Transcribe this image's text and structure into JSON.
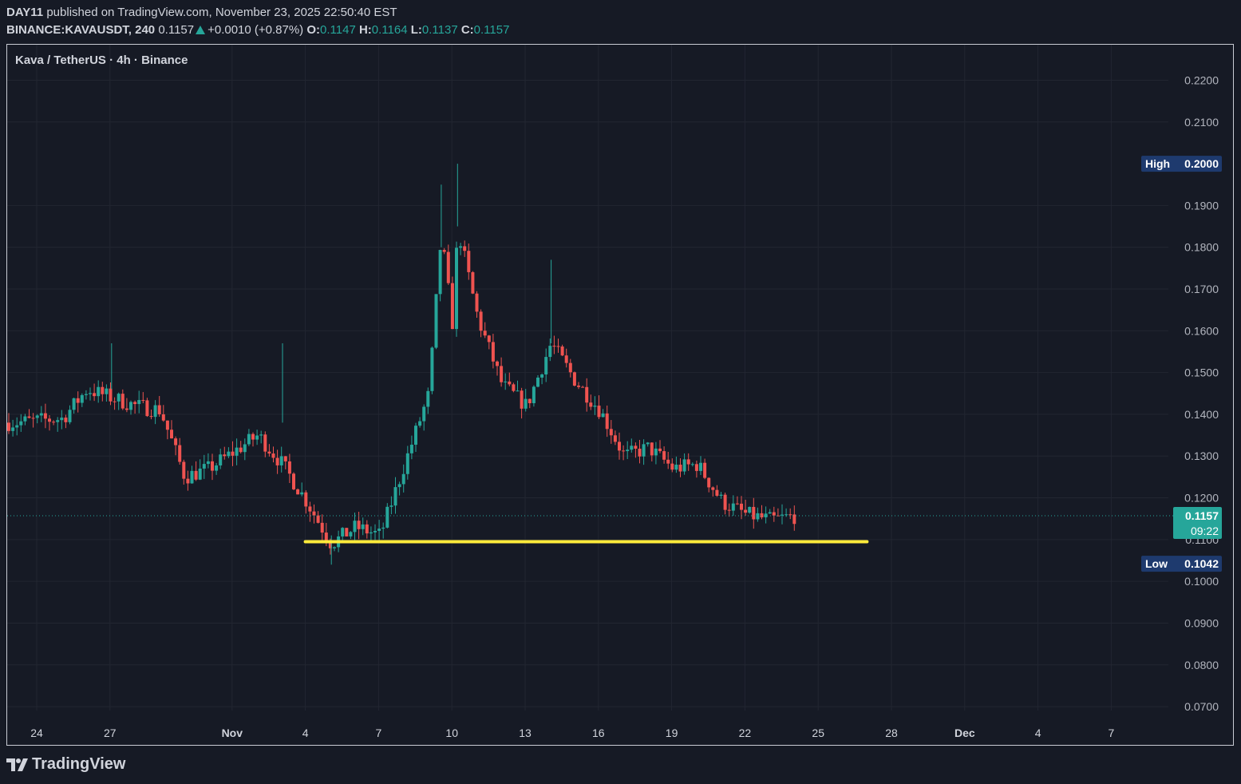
{
  "header": {
    "publisher": "DAY11",
    "published_text": "published on TradingView.com, November 23, 2025 22:50:40 EST",
    "symbol": "BINANCE:KAVAUSDT",
    "interval": "240",
    "last": "0.1157",
    "change": "+0.0010 (+0.87%)",
    "o_label": "O:",
    "o_value": "0.1147",
    "h_label": "H:",
    "h_value": "0.1164",
    "l_label": "L:",
    "l_value": "0.1137",
    "c_label": "C:",
    "c_value": "0.1157"
  },
  "chart_title": "Kava / TetherUS · 4h · Binance",
  "footer": {
    "brand": "TradingView",
    "logo_icon": "tradingview-logo-icon"
  },
  "colors": {
    "background": "#161a25",
    "up": "#26a69a",
    "down": "#ef5350",
    "grid": "#222631",
    "support_line": "#ffeb3b",
    "label_bg": "#1e3a6e",
    "price_label_bg": "#26a69a"
  },
  "chart_data": {
    "type": "candlestick",
    "title": "Kava / TetherUS · 4h · Binance",
    "y_ticks": [
      "0.2200",
      "0.2100",
      "0.1900",
      "0.1800",
      "0.1700",
      "0.1600",
      "0.1500",
      "0.1400",
      "0.1300",
      "0.1200",
      "0.1100",
      "0.1000",
      "0.0900",
      "0.0800",
      "0.0700"
    ],
    "x_ticks": [
      "24",
      "27",
      "Nov",
      "4",
      "7",
      "10",
      "13",
      "16",
      "19",
      "22",
      "25",
      "28",
      "Dec",
      "4",
      "7"
    ],
    "ylim": [
      0.066,
      0.2285
    ],
    "high_label": "High",
    "high_value": "0.2000",
    "low_label": "Low",
    "low_value": "0.1042",
    "current_price": "0.1157",
    "countdown": "09:22",
    "support_line": {
      "from_date": "2025-11-04",
      "to_date": "2025-11-27",
      "price": 0.1095
    },
    "key_points": [
      {
        "date": "2025-10-23",
        "close": 0.138
      },
      {
        "date": "2025-10-25",
        "close": 0.139
      },
      {
        "date": "2025-10-26",
        "close": 0.146
      },
      {
        "date": "2025-10-28",
        "close": 0.142
      },
      {
        "date": "2025-10-29",
        "close": 0.141
      },
      {
        "date": "2025-10-30",
        "close": 0.125
      },
      {
        "date": "2025-10-31",
        "close": 0.127
      },
      {
        "date": "2025-11-02",
        "close": 0.135
      },
      {
        "date": "2025-11-03",
        "close": 0.128
      },
      {
        "date": "2025-11-04",
        "close": 0.119
      },
      {
        "date": "2025-11-05",
        "close": 0.109
      },
      {
        "date": "2025-11-06",
        "close": 0.113
      },
      {
        "date": "2025-11-07",
        "close": 0.111
      },
      {
        "date": "2025-11-08",
        "close": 0.128
      },
      {
        "date": "2025-11-09",
        "close": 0.145
      },
      {
        "date": "2025-11-09T12",
        "close": 0.183
      },
      {
        "date": "2025-11-10",
        "close": 0.16
      },
      {
        "date": "2025-11-10T04",
        "close": 0.185
      },
      {
        "date": "2025-11-11",
        "close": 0.163
      },
      {
        "date": "2025-11-12",
        "close": 0.147
      },
      {
        "date": "2025-11-13",
        "close": 0.142
      },
      {
        "date": "2025-11-14",
        "close": 0.157
      },
      {
        "date": "2025-11-15",
        "close": 0.148
      },
      {
        "date": "2025-11-16",
        "close": 0.141
      },
      {
        "date": "2025-11-17",
        "close": 0.13
      },
      {
        "date": "2025-11-18",
        "close": 0.132
      },
      {
        "date": "2025-11-19",
        "close": 0.127
      },
      {
        "date": "2025-11-20",
        "close": 0.128
      },
      {
        "date": "2025-11-21",
        "close": 0.119
      },
      {
        "date": "2025-11-22",
        "close": 0.116
      },
      {
        "date": "2025-11-23",
        "close": 0.1147
      },
      {
        "date": "2025-11-24",
        "close": 0.1157
      }
    ]
  }
}
